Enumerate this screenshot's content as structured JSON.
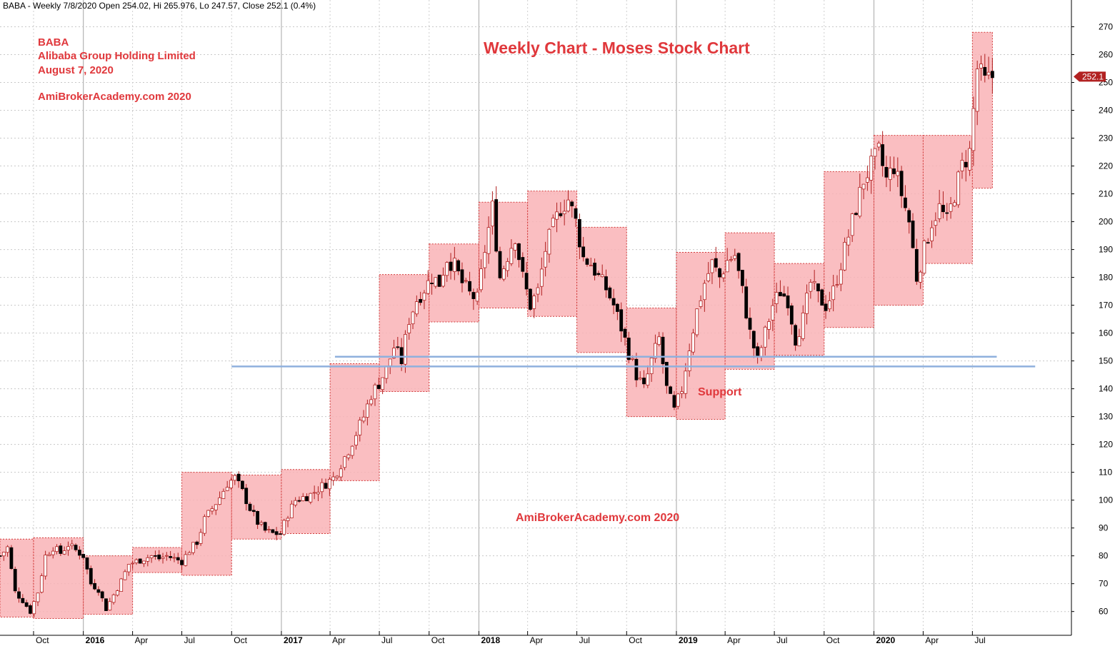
{
  "header": "BABA - Weekly 7/8/2020 Open 254.02, Hi 265.976, Lo 247.57, Close 252.1 (0.4%)",
  "annotations": {
    "symbol": "BABA",
    "company": "Alibaba Group Holding Limited",
    "date": "August 7, 2020",
    "site_left": "AmiBrokerAcademy.com  2020",
    "title": "Weekly Chart - Moses Stock Chart",
    "support": "Support",
    "site_bottom": "AmiBrokerAcademy.com  2020"
  },
  "colors": {
    "background": "#ffffff",
    "box_fill": "#f9b3b6",
    "box_border": "#d23a3a",
    "bull_candle": "#ffffff",
    "bear_candle": "#000000",
    "wick": "#b02020",
    "support_line": "#8fb0dd",
    "annotation_text": "#e0383c",
    "price_tag": "#b22222"
  },
  "chart_data": {
    "type": "candlestick",
    "title": "Weekly Chart - Moses Stock Chart",
    "interval": "weekly",
    "ylim": [
      53,
      275
    ],
    "y_ticks": [
      60,
      70,
      80,
      90,
      100,
      110,
      120,
      130,
      140,
      150,
      160,
      170,
      180,
      190,
      200,
      210,
      220,
      230,
      240,
      250,
      260,
      270
    ],
    "x_range": [
      "2015-07-31",
      "2020-12-31"
    ],
    "x_ticks": [
      {
        "label": "Oct",
        "date": "2015-10-01"
      },
      {
        "label": "2016",
        "date": "2016-01-01",
        "bold": true
      },
      {
        "label": "Apr",
        "date": "2016-04-01"
      },
      {
        "label": "Jul",
        "date": "2016-07-01"
      },
      {
        "label": "Oct",
        "date": "2016-10-01"
      },
      {
        "label": "2017",
        "date": "2017-01-01",
        "bold": true
      },
      {
        "label": "Apr",
        "date": "2017-04-01"
      },
      {
        "label": "Jul",
        "date": "2017-07-01"
      },
      {
        "label": "Oct",
        "date": "2017-10-01"
      },
      {
        "label": "2018",
        "date": "2018-01-01",
        "bold": true
      },
      {
        "label": "Apr",
        "date": "2018-04-01"
      },
      {
        "label": "Jul",
        "date": "2018-07-01"
      },
      {
        "label": "Oct",
        "date": "2018-10-01"
      },
      {
        "label": "2019",
        "date": "2019-01-01",
        "bold": true
      },
      {
        "label": "Apr",
        "date": "2019-04-01"
      },
      {
        "label": "Jul",
        "date": "2019-07-01"
      },
      {
        "label": "Oct",
        "date": "2019-10-01"
      },
      {
        "label": "2020",
        "date": "2020-01-01",
        "bold": true
      },
      {
        "label": "Apr",
        "date": "2020-04-01"
      },
      {
        "label": "Jul",
        "date": "2020-07-01"
      }
    ],
    "grid": true,
    "last_price": 252.1,
    "last_price_label": "252.1",
    "quarter_boxes": [
      {
        "start": "2015-07-31",
        "end": "2015-10-01",
        "high": 86,
        "low": 58
      },
      {
        "start": "2015-10-01",
        "end": "2016-01-01",
        "high": 86.5,
        "low": 57.5
      },
      {
        "start": "2016-01-01",
        "end": "2016-04-01",
        "high": 80,
        "low": 59
      },
      {
        "start": "2016-04-01",
        "end": "2016-07-01",
        "high": 83,
        "low": 74
      },
      {
        "start": "2016-07-01",
        "end": "2016-10-01",
        "high": 110,
        "low": 73
      },
      {
        "start": "2016-10-01",
        "end": "2017-01-01",
        "high": 109,
        "low": 86
      },
      {
        "start": "2017-01-01",
        "end": "2017-04-01",
        "high": 111,
        "low": 88
      },
      {
        "start": "2017-04-01",
        "end": "2017-07-01",
        "high": 149,
        "low": 107
      },
      {
        "start": "2017-07-01",
        "end": "2017-10-01",
        "high": 181,
        "low": 139
      },
      {
        "start": "2017-10-01",
        "end": "2018-01-01",
        "high": 192,
        "low": 164
      },
      {
        "start": "2018-01-01",
        "end": "2018-04-01",
        "high": 207,
        "low": 169
      },
      {
        "start": "2018-04-01",
        "end": "2018-07-01",
        "high": 211,
        "low": 166
      },
      {
        "start": "2018-07-01",
        "end": "2018-10-01",
        "high": 198,
        "low": 153
      },
      {
        "start": "2018-10-01",
        "end": "2019-01-01",
        "high": 169,
        "low": 130
      },
      {
        "start": "2019-01-01",
        "end": "2019-04-01",
        "high": 189,
        "low": 129
      },
      {
        "start": "2019-04-01",
        "end": "2019-07-01",
        "high": 196,
        "low": 147
      },
      {
        "start": "2019-07-01",
        "end": "2019-10-01",
        "high": 185,
        "low": 152
      },
      {
        "start": "2019-10-01",
        "end": "2020-01-01",
        "high": 218,
        "low": 162
      },
      {
        "start": "2020-01-01",
        "end": "2020-04-01",
        "high": 231,
        "low": 170
      },
      {
        "start": "2020-04-01",
        "end": "2020-07-01",
        "high": 231,
        "low": 185
      },
      {
        "start": "2020-07-01",
        "end": "2020-08-07",
        "high": 268,
        "low": 212
      }
    ],
    "horizontal_lines": [
      {
        "value": 148,
        "start": "2016-10-01",
        "end": "2020-10-25"
      },
      {
        "value": 151.5,
        "start": "2017-04-10",
        "end": "2020-08-15"
      }
    ],
    "price_path": [
      [
        "2015-07-31",
        80
      ],
      [
        "2015-08-14",
        83
      ],
      [
        "2015-08-28",
        67
      ],
      [
        "2015-09-11",
        64
      ],
      [
        "2015-09-25",
        60
      ],
      [
        "2015-10-09",
        67
      ],
      [
        "2015-10-23",
        80
      ],
      [
        "2015-11-06",
        83
      ],
      [
        "2015-11-20",
        81
      ],
      [
        "2015-12-04",
        84
      ],
      [
        "2015-12-18",
        82
      ],
      [
        "2016-01-01",
        80
      ],
      [
        "2016-01-15",
        70
      ],
      [
        "2016-01-29",
        68
      ],
      [
        "2016-02-12",
        61
      ],
      [
        "2016-02-26",
        66
      ],
      [
        "2016-03-11",
        71
      ],
      [
        "2016-03-25",
        77
      ],
      [
        "2016-04-08",
        78
      ],
      [
        "2016-04-22",
        79
      ],
      [
        "2016-05-06",
        80
      ],
      [
        "2016-05-20",
        79
      ],
      [
        "2016-06-03",
        80
      ],
      [
        "2016-06-17",
        79
      ],
      [
        "2016-07-01",
        78
      ],
      [
        "2016-07-15",
        82
      ],
      [
        "2016-07-29",
        85
      ],
      [
        "2016-08-12",
        93
      ],
      [
        "2016-08-26",
        97
      ],
      [
        "2016-09-09",
        101
      ],
      [
        "2016-09-23",
        106
      ],
      [
        "2016-10-07",
        108
      ],
      [
        "2016-10-21",
        103
      ],
      [
        "2016-11-04",
        97
      ],
      [
        "2016-11-18",
        92
      ],
      [
        "2016-12-02",
        89
      ],
      [
        "2016-12-16",
        88
      ],
      [
        "2016-12-30",
        88
      ],
      [
        "2017-01-13",
        95
      ],
      [
        "2017-01-27",
        100
      ],
      [
        "2017-02-10",
        101
      ],
      [
        "2017-02-24",
        102
      ],
      [
        "2017-03-10",
        104
      ],
      [
        "2017-03-24",
        106
      ],
      [
        "2017-04-07",
        108
      ],
      [
        "2017-04-21",
        113
      ],
      [
        "2017-05-05",
        118
      ],
      [
        "2017-05-19",
        124
      ],
      [
        "2017-06-02",
        130
      ],
      [
        "2017-06-16",
        138
      ],
      [
        "2017-06-30",
        142
      ],
      [
        "2017-07-14",
        147
      ],
      [
        "2017-07-28",
        155
      ],
      [
        "2017-08-11",
        150
      ],
      [
        "2017-08-25",
        165
      ],
      [
        "2017-09-08",
        172
      ],
      [
        "2017-09-22",
        176
      ],
      [
        "2017-10-06",
        180
      ],
      [
        "2017-10-20",
        178
      ],
      [
        "2017-11-03",
        187
      ],
      [
        "2017-11-17",
        184
      ],
      [
        "2017-12-01",
        178
      ],
      [
        "2017-12-15",
        174
      ],
      [
        "2017-12-29",
        172
      ],
      [
        "2018-01-12",
        190
      ],
      [
        "2018-01-26",
        205
      ],
      [
        "2018-02-09",
        180
      ],
      [
        "2018-02-23",
        188
      ],
      [
        "2018-03-09",
        195
      ],
      [
        "2018-03-23",
        180
      ],
      [
        "2018-04-06",
        170
      ],
      [
        "2018-04-20",
        175
      ],
      [
        "2018-05-04",
        190
      ],
      [
        "2018-05-18",
        198
      ],
      [
        "2018-06-01",
        205
      ],
      [
        "2018-06-15",
        208
      ],
      [
        "2018-06-29",
        200
      ],
      [
        "2018-07-13",
        187
      ],
      [
        "2018-07-27",
        185
      ],
      [
        "2018-08-10",
        180
      ],
      [
        "2018-08-24",
        176
      ],
      [
        "2018-09-07",
        170
      ],
      [
        "2018-09-21",
        162
      ],
      [
        "2018-10-05",
        153
      ],
      [
        "2018-10-19",
        145
      ],
      [
        "2018-11-02",
        140
      ],
      [
        "2018-11-16",
        150
      ],
      [
        "2018-11-30",
        158
      ],
      [
        "2018-12-14",
        140
      ],
      [
        "2018-12-28",
        132
      ],
      [
        "2019-01-11",
        140
      ],
      [
        "2019-01-25",
        155
      ],
      [
        "2019-02-08",
        168
      ],
      [
        "2019-02-22",
        178
      ],
      [
        "2019-03-08",
        185
      ],
      [
        "2019-03-22",
        180
      ],
      [
        "2019-04-05",
        186
      ],
      [
        "2019-04-19",
        188
      ],
      [
        "2019-05-03",
        175
      ],
      [
        "2019-05-17",
        160
      ],
      [
        "2019-05-31",
        150
      ],
      [
        "2019-06-14",
        160
      ],
      [
        "2019-06-28",
        170
      ],
      [
        "2019-07-12",
        175
      ],
      [
        "2019-07-26",
        172
      ],
      [
        "2019-08-09",
        158
      ],
      [
        "2019-08-23",
        165
      ],
      [
        "2019-09-06",
        178
      ],
      [
        "2019-09-20",
        173
      ],
      [
        "2019-10-04",
        170
      ],
      [
        "2019-10-18",
        175
      ],
      [
        "2019-11-01",
        185
      ],
      [
        "2019-11-15",
        195
      ],
      [
        "2019-11-29",
        205
      ],
      [
        "2019-12-13",
        215
      ],
      [
        "2019-12-27",
        220
      ],
      [
        "2020-01-10",
        225
      ],
      [
        "2020-01-24",
        215
      ],
      [
        "2020-02-07",
        220
      ],
      [
        "2020-02-21",
        210
      ],
      [
        "2020-03-06",
        200
      ],
      [
        "2020-03-20",
        180
      ],
      [
        "2020-04-03",
        190
      ],
      [
        "2020-04-17",
        200
      ],
      [
        "2020-05-01",
        205
      ],
      [
        "2020-05-15",
        200
      ],
      [
        "2020-05-29",
        210
      ],
      [
        "2020-06-12",
        220
      ],
      [
        "2020-06-26",
        225
      ],
      [
        "2020-07-10",
        255
      ],
      [
        "2020-07-24",
        250
      ],
      [
        "2020-08-07",
        252.1
      ]
    ]
  }
}
